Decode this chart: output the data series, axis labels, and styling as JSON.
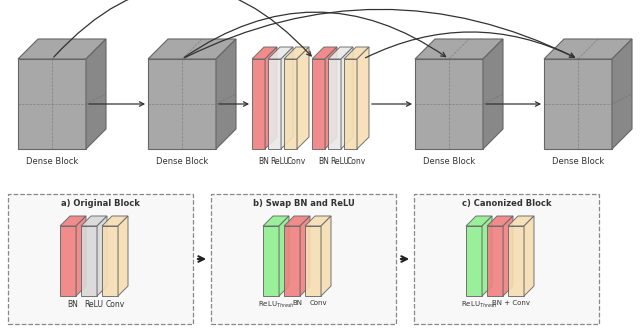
{
  "bg_color": "#ffffff",
  "dense_block_color": "#a8a8a8",
  "dense_block_color_light": "#c0c0c0",
  "edge_color": "#666666",
  "layer_colors_top": [
    "#f08080",
    "#e8e8e8",
    "#f5deb3",
    "#f08080",
    "#e8e8e8",
    "#f5deb3"
  ],
  "layer_labels_top": [
    "BN",
    "ReLU",
    "Conv",
    "BN",
    "ReLU",
    "Conv"
  ],
  "panel_a_layers": [
    "#f08080",
    "#d8d8d8",
    "#f5deb3"
  ],
  "panel_b_layers": [
    "#90ee90",
    "#f08080",
    "#f5deb3"
  ],
  "panel_c_layers": [
    "#90ee90",
    "#f08080",
    "#f5deb3"
  ],
  "panel_a_labels": [
    "BN",
    "ReLU",
    "Conv"
  ],
  "panel_b_labels": [
    "ReLU$_{Thresh}$",
    "BN",
    "Conv"
  ],
  "panel_c_labels": [
    "ReLU$_{Thresh}$",
    "BN + Conv"
  ]
}
